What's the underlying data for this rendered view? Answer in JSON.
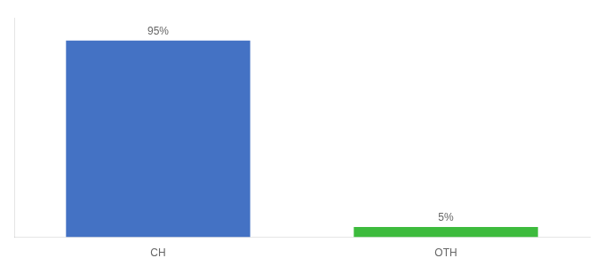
{
  "chart_data": {
    "type": "bar",
    "categories": [
      "CH",
      "OTH"
    ],
    "values": [
      95,
      5
    ],
    "value_labels": [
      "95%",
      "5%"
    ],
    "data_labels": true,
    "colors": [
      "#4472c4",
      "#3dbb3d"
    ],
    "ylim": [
      0,
      106
    ],
    "tick_labels": "x",
    "grid": false
  }
}
